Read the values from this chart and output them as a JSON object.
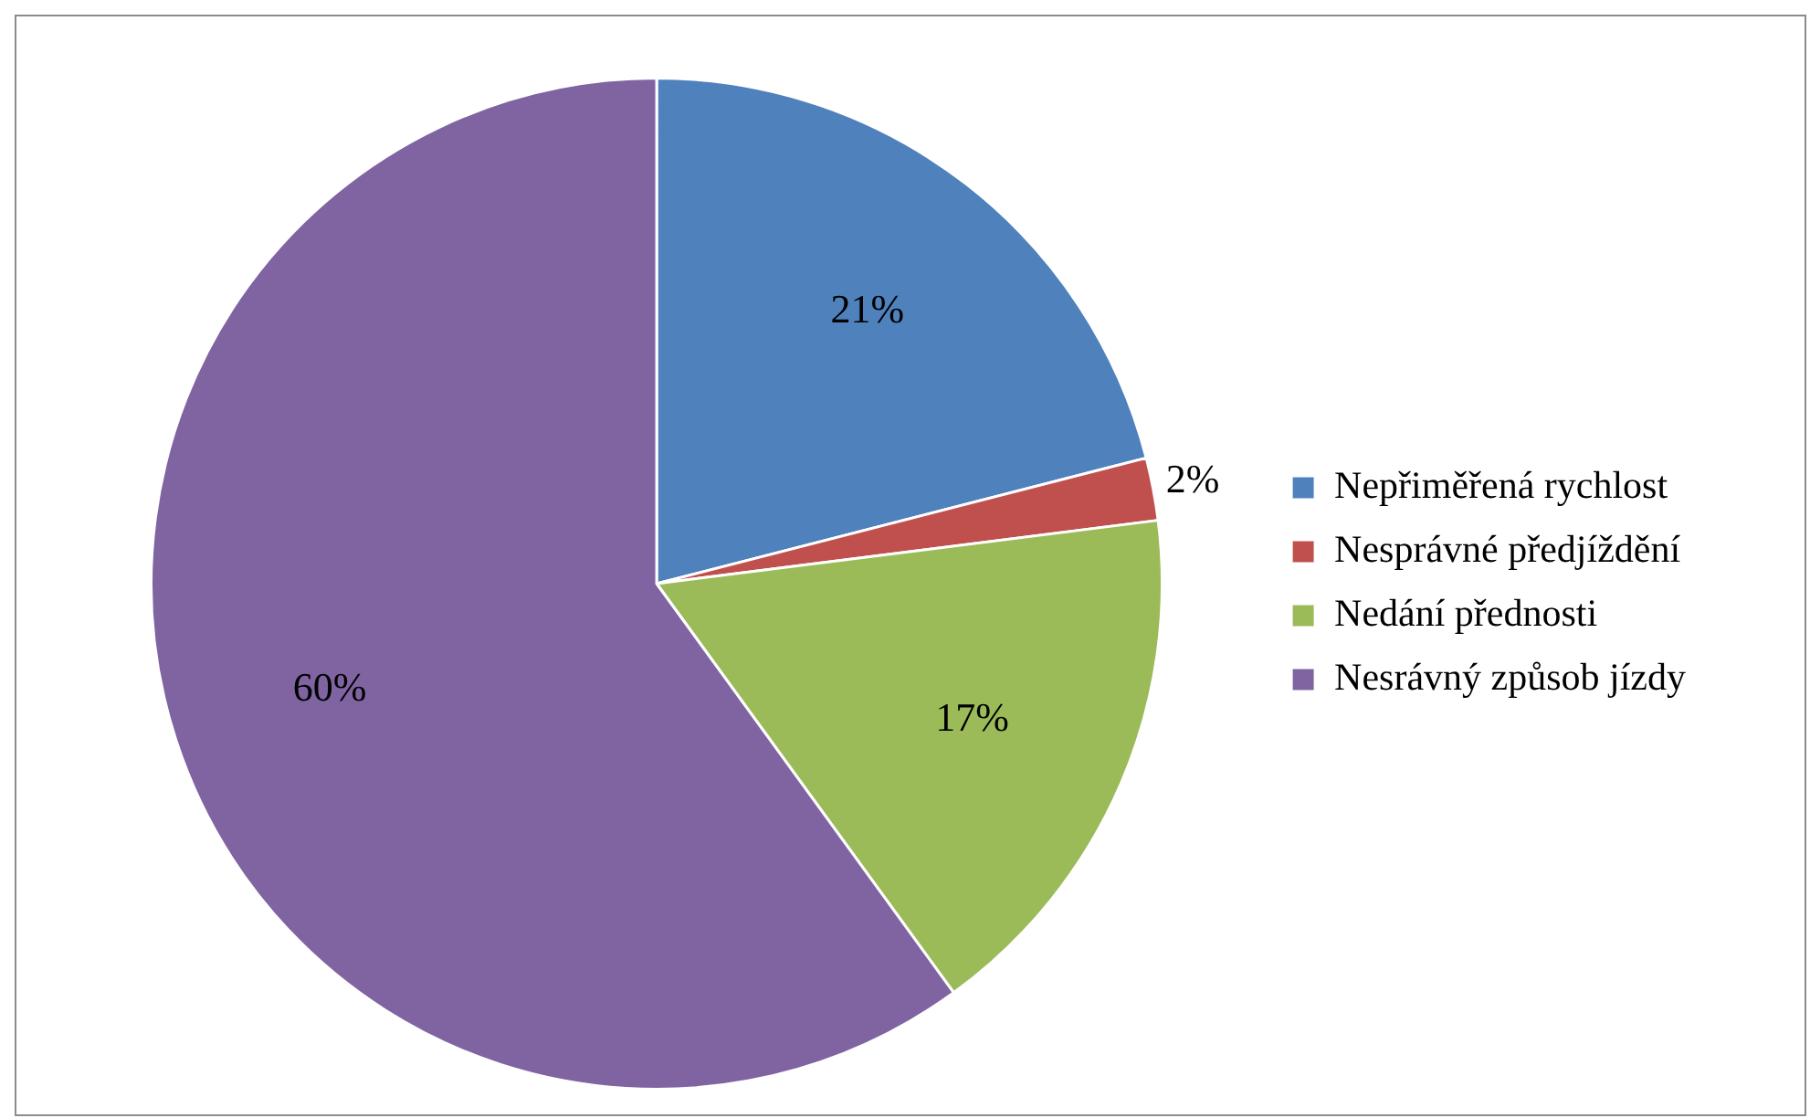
{
  "chart_data": {
    "type": "pie",
    "categories": [
      "Nepřiměřená rychlost",
      "Nesprávné předjíždění",
      "Nedání přednosti",
      "Nesrávný způsob jízdy"
    ],
    "values": [
      21,
      2,
      17,
      60
    ],
    "colors": [
      "#4f81bd",
      "#c0504d",
      "#9bbb59",
      "#8064a2"
    ],
    "value_labels": [
      "21%",
      "2%",
      "17%",
      "60%"
    ],
    "legend": "right"
  }
}
